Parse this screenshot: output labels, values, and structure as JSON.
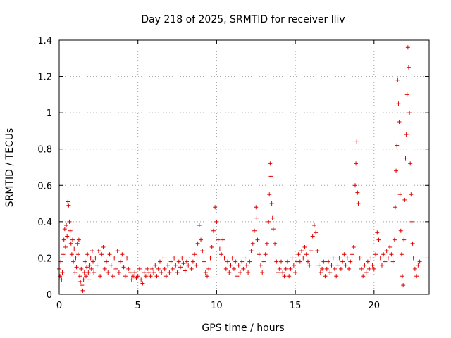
{
  "chart_data": {
    "type": "scatter",
    "title": "Day 218 of 2025, SRMTID for receiver lliv",
    "xlabel": "GPS time / hours",
    "ylabel": "SRMTID / TECUs",
    "xlim": [
      0,
      23.5
    ],
    "ylim": [
      0,
      1.4
    ],
    "xticks": [
      0,
      5,
      10,
      15,
      20
    ],
    "xtick_labels": [
      "0",
      "5",
      "10",
      "15",
      "20"
    ],
    "yticks": [
      0,
      0.2,
      0.4,
      0.6,
      0.8,
      1,
      1.2,
      1.4
    ],
    "ytick_labels": [
      "0",
      "0.2",
      "0.4",
      "0.6",
      "0.8",
      "1",
      "1.2",
      "1.4"
    ],
    "grid": true,
    "marker": "+",
    "series": [
      {
        "name": "SRMTID",
        "color": "#e00000",
        "points": [
          [
            0.0,
            0.14
          ],
          [
            0.05,
            0.1
          ],
          [
            0.1,
            0.18
          ],
          [
            0.15,
            0.08
          ],
          [
            0.2,
            0.12
          ],
          [
            0.25,
            0.22
          ],
          [
            0.3,
            0.3
          ],
          [
            0.35,
            0.36
          ],
          [
            0.4,
            0.26
          ],
          [
            0.45,
            0.38
          ],
          [
            0.5,
            0.32
          ],
          [
            0.55,
            0.51
          ],
          [
            0.6,
            0.49
          ],
          [
            0.65,
            0.4
          ],
          [
            0.7,
            0.35
          ],
          [
            0.75,
            0.28
          ],
          [
            0.8,
            0.22
          ],
          [
            0.85,
            0.3
          ],
          [
            0.9,
            0.18
          ],
          [
            0.95,
            0.25
          ],
          [
            1.0,
            0.12
          ],
          [
            1.05,
            0.2
          ],
          [
            1.1,
            0.15
          ],
          [
            1.15,
            0.28
          ],
          [
            1.2,
            0.22
          ],
          [
            1.25,
            0.3
          ],
          [
            1.3,
            0.1
          ],
          [
            1.35,
            0.07
          ],
          [
            1.4,
            0.14
          ],
          [
            1.45,
            0.05
          ],
          [
            1.5,
            0.02
          ],
          [
            1.55,
            0.08
          ],
          [
            1.6,
            0.12
          ],
          [
            1.65,
            0.18
          ],
          [
            1.7,
            0.1
          ],
          [
            1.75,
            0.15
          ],
          [
            1.8,
            0.22
          ],
          [
            1.85,
            0.12
          ],
          [
            1.9,
            0.08
          ],
          [
            1.95,
            0.16
          ],
          [
            2.0,
            0.2
          ],
          [
            2.05,
            0.14
          ],
          [
            2.1,
            0.24
          ],
          [
            2.15,
            0.18
          ],
          [
            2.2,
            0.12
          ],
          [
            2.3,
            0.2
          ],
          [
            2.4,
            0.16
          ],
          [
            2.5,
            0.24
          ],
          [
            2.6,
            0.1
          ],
          [
            2.7,
            0.22
          ],
          [
            2.8,
            0.26
          ],
          [
            2.9,
            0.14
          ],
          [
            3.0,
            0.18
          ],
          [
            3.1,
            0.12
          ],
          [
            3.2,
            0.22
          ],
          [
            3.3,
            0.16
          ],
          [
            3.4,
            0.1
          ],
          [
            3.5,
            0.2
          ],
          [
            3.6,
            0.14
          ],
          [
            3.7,
            0.24
          ],
          [
            3.8,
            0.12
          ],
          [
            3.9,
            0.18
          ],
          [
            4.0,
            0.22
          ],
          [
            4.1,
            0.15
          ],
          [
            4.2,
            0.1
          ],
          [
            4.3,
            0.2
          ],
          [
            4.4,
            0.14
          ],
          [
            4.5,
            0.12
          ],
          [
            4.6,
            0.08
          ],
          [
            4.7,
            0.1
          ],
          [
            4.8,
            0.12
          ],
          [
            4.9,
            0.09
          ],
          [
            5.0,
            0.1
          ],
          [
            5.1,
            0.14
          ],
          [
            5.2,
            0.08
          ],
          [
            5.3,
            0.06
          ],
          [
            5.4,
            0.12
          ],
          [
            5.5,
            0.1
          ],
          [
            5.6,
            0.14
          ],
          [
            5.7,
            0.12
          ],
          [
            5.8,
            0.1
          ],
          [
            5.9,
            0.14
          ],
          [
            6.0,
            0.12
          ],
          [
            6.1,
            0.16
          ],
          [
            6.2,
            0.1
          ],
          [
            6.3,
            0.14
          ],
          [
            6.4,
            0.18
          ],
          [
            6.5,
            0.12
          ],
          [
            6.6,
            0.2
          ],
          [
            6.7,
            0.14
          ],
          [
            6.8,
            0.1
          ],
          [
            6.9,
            0.16
          ],
          [
            7.0,
            0.12
          ],
          [
            7.1,
            0.18
          ],
          [
            7.2,
            0.14
          ],
          [
            7.3,
            0.2
          ],
          [
            7.4,
            0.16
          ],
          [
            7.5,
            0.12
          ],
          [
            7.6,
            0.18
          ],
          [
            7.7,
            0.15
          ],
          [
            7.8,
            0.2
          ],
          [
            7.9,
            0.17
          ],
          [
            8.0,
            0.13
          ],
          [
            8.1,
            0.18
          ],
          [
            8.2,
            0.16
          ],
          [
            8.3,
            0.2
          ],
          [
            8.4,
            0.14
          ],
          [
            8.5,
            0.18
          ],
          [
            8.6,
            0.22
          ],
          [
            8.7,
            0.16
          ],
          [
            8.8,
            0.28
          ],
          [
            8.9,
            0.38
          ],
          [
            9.0,
            0.3
          ],
          [
            9.1,
            0.24
          ],
          [
            9.2,
            0.18
          ],
          [
            9.3,
            0.12
          ],
          [
            9.4,
            0.1
          ],
          [
            9.5,
            0.14
          ],
          [
            9.6,
            0.2
          ],
          [
            9.7,
            0.26
          ],
          [
            9.8,
            0.35
          ],
          [
            9.9,
            0.48
          ],
          [
            10.0,
            0.4
          ],
          [
            10.1,
            0.3
          ],
          [
            10.2,
            0.25
          ],
          [
            10.3,
            0.22
          ],
          [
            10.4,
            0.3
          ],
          [
            10.5,
            0.2
          ],
          [
            10.6,
            0.14
          ],
          [
            10.7,
            0.18
          ],
          [
            10.8,
            0.12
          ],
          [
            10.9,
            0.16
          ],
          [
            11.0,
            0.2
          ],
          [
            11.1,
            0.14
          ],
          [
            11.2,
            0.18
          ],
          [
            11.3,
            0.1
          ],
          [
            11.4,
            0.16
          ],
          [
            11.5,
            0.12
          ],
          [
            11.6,
            0.18
          ],
          [
            11.7,
            0.14
          ],
          [
            11.8,
            0.2
          ],
          [
            11.9,
            0.16
          ],
          [
            12.0,
            0.12
          ],
          [
            12.1,
            0.18
          ],
          [
            12.2,
            0.24
          ],
          [
            12.3,
            0.28
          ],
          [
            12.4,
            0.35
          ],
          [
            12.5,
            0.48
          ],
          [
            12.55,
            0.42
          ],
          [
            12.6,
            0.3
          ],
          [
            12.7,
            0.22
          ],
          [
            12.8,
            0.16
          ],
          [
            12.9,
            0.12
          ],
          [
            13.0,
            0.18
          ],
          [
            13.1,
            0.22
          ],
          [
            13.2,
            0.28
          ],
          [
            13.3,
            0.4
          ],
          [
            13.35,
            0.55
          ],
          [
            13.4,
            0.72
          ],
          [
            13.45,
            0.65
          ],
          [
            13.5,
            0.5
          ],
          [
            13.55,
            0.42
          ],
          [
            13.6,
            0.36
          ],
          [
            13.7,
            0.28
          ],
          [
            13.8,
            0.18
          ],
          [
            13.9,
            0.12
          ],
          [
            14.0,
            0.14
          ],
          [
            14.1,
            0.18
          ],
          [
            14.2,
            0.12
          ],
          [
            14.3,
            0.1
          ],
          [
            14.4,
            0.14
          ],
          [
            14.5,
            0.18
          ],
          [
            14.6,
            0.1
          ],
          [
            14.7,
            0.14
          ],
          [
            14.8,
            0.2
          ],
          [
            14.9,
            0.16
          ],
          [
            15.0,
            0.12
          ],
          [
            15.1,
            0.18
          ],
          [
            15.2,
            0.22
          ],
          [
            15.3,
            0.18
          ],
          [
            15.4,
            0.24
          ],
          [
            15.5,
            0.2
          ],
          [
            15.6,
            0.26
          ],
          [
            15.7,
            0.22
          ],
          [
            15.8,
            0.18
          ],
          [
            15.9,
            0.16
          ],
          [
            16.0,
            0.24
          ],
          [
            16.1,
            0.32
          ],
          [
            16.2,
            0.38
          ],
          [
            16.3,
            0.34
          ],
          [
            16.4,
            0.24
          ],
          [
            16.5,
            0.16
          ],
          [
            16.6,
            0.12
          ],
          [
            16.7,
            0.14
          ],
          [
            16.8,
            0.18
          ],
          [
            16.9,
            0.1
          ],
          [
            17.0,
            0.14
          ],
          [
            17.1,
            0.18
          ],
          [
            17.2,
            0.12
          ],
          [
            17.3,
            0.16
          ],
          [
            17.4,
            0.2
          ],
          [
            17.5,
            0.14
          ],
          [
            17.6,
            0.1
          ],
          [
            17.7,
            0.16
          ],
          [
            17.8,
            0.2
          ],
          [
            17.9,
            0.14
          ],
          [
            18.0,
            0.18
          ],
          [
            18.1,
            0.22
          ],
          [
            18.2,
            0.16
          ],
          [
            18.3,
            0.2
          ],
          [
            18.4,
            0.14
          ],
          [
            18.5,
            0.18
          ],
          [
            18.6,
            0.22
          ],
          [
            18.7,
            0.26
          ],
          [
            18.8,
            0.6
          ],
          [
            18.85,
            0.72
          ],
          [
            18.9,
            0.84
          ],
          [
            18.95,
            0.56
          ],
          [
            19.0,
            0.5
          ],
          [
            19.1,
            0.2
          ],
          [
            19.2,
            0.14
          ],
          [
            19.3,
            0.1
          ],
          [
            19.4,
            0.16
          ],
          [
            19.5,
            0.12
          ],
          [
            19.6,
            0.18
          ],
          [
            19.7,
            0.14
          ],
          [
            19.8,
            0.2
          ],
          [
            19.9,
            0.16
          ],
          [
            20.0,
            0.14
          ],
          [
            20.1,
            0.22
          ],
          [
            20.2,
            0.34
          ],
          [
            20.3,
            0.3
          ],
          [
            20.4,
            0.2
          ],
          [
            20.5,
            0.16
          ],
          [
            20.6,
            0.22
          ],
          [
            20.7,
            0.18
          ],
          [
            20.8,
            0.24
          ],
          [
            20.9,
            0.2
          ],
          [
            21.0,
            0.26
          ],
          [
            21.1,
            0.22
          ],
          [
            21.2,
            0.18
          ],
          [
            21.3,
            0.3
          ],
          [
            21.35,
            0.48
          ],
          [
            21.4,
            0.68
          ],
          [
            21.45,
            0.82
          ],
          [
            21.5,
            1.18
          ],
          [
            21.55,
            1.05
          ],
          [
            21.6,
            0.95
          ],
          [
            21.65,
            0.55
          ],
          [
            21.7,
            0.35
          ],
          [
            21.75,
            0.22
          ],
          [
            21.8,
            0.1
          ],
          [
            21.85,
            0.05
          ],
          [
            21.9,
            0.3
          ],
          [
            21.95,
            0.52
          ],
          [
            22.0,
            0.75
          ],
          [
            22.05,
            0.88
          ],
          [
            22.1,
            1.1
          ],
          [
            22.15,
            1.36
          ],
          [
            22.2,
            1.25
          ],
          [
            22.25,
            1.0
          ],
          [
            22.3,
            0.72
          ],
          [
            22.35,
            0.55
          ],
          [
            22.4,
            0.4
          ],
          [
            22.45,
            0.28
          ],
          [
            22.5,
            0.2
          ],
          [
            22.6,
            0.14
          ],
          [
            22.7,
            0.1
          ],
          [
            22.8,
            0.16
          ],
          [
            22.9,
            0.18
          ]
        ]
      }
    ]
  }
}
